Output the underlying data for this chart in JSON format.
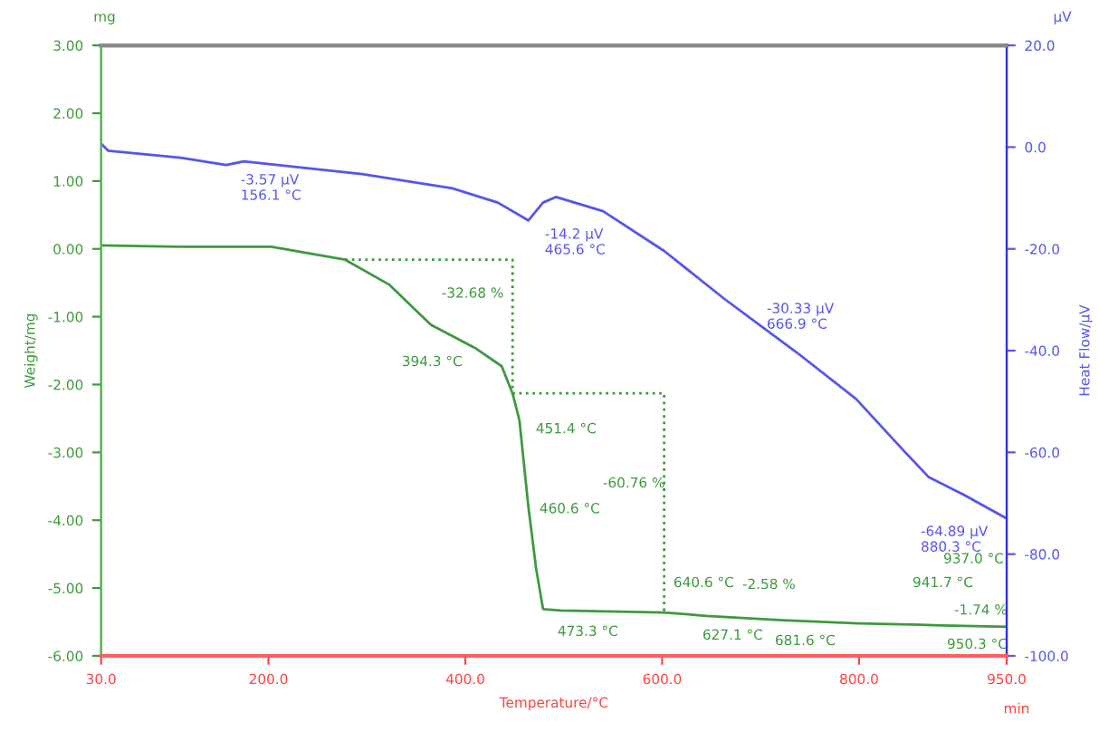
{
  "chart_data": {
    "type": "line",
    "xlabel": "Temperature/°C",
    "ylabel": "Weight/mg",
    "y2label": "Heat Flow/µV",
    "xlim": [
      30,
      950
    ],
    "xticks": [
      {
        "value": 30,
        "label": "30.0"
      },
      {
        "value": 200,
        "label": "200.0"
      },
      {
        "value": 400,
        "label": "400.0"
      },
      {
        "value": 600,
        "label": "600.0"
      },
      {
        "value": 800,
        "label": "800.0"
      },
      {
        "value": 950,
        "label": "950.0"
      }
    ],
    "ylim": [
      -6,
      3
    ],
    "yticks": [
      {
        "value": 3,
        "label": "3.00"
      },
      {
        "value": 2,
        "label": "2.00"
      },
      {
        "value": 1,
        "label": "1.00"
      },
      {
        "value": 0,
        "label": "0.00"
      },
      {
        "value": -1,
        "label": "-1.00"
      },
      {
        "value": -2,
        "label": "-2.00"
      },
      {
        "value": -3,
        "label": "-3.00"
      },
      {
        "value": -4,
        "label": "-4.00"
      },
      {
        "value": -5,
        "label": "-5.00"
      },
      {
        "value": -6,
        "label": "-6.00"
      }
    ],
    "y2lim": [
      -100,
      20
    ],
    "y2ticks": [
      {
        "value": 20,
        "label": "20.0"
      },
      {
        "value": 0,
        "label": "0.0"
      },
      {
        "value": -20,
        "label": "-20.0"
      },
      {
        "value": -40,
        "label": "-40.0"
      },
      {
        "value": -60,
        "label": "-60.0"
      },
      {
        "value": -80,
        "label": "-80.0"
      },
      {
        "value": -100,
        "label": "-100.0"
      }
    ],
    "grid": false,
    "series": [
      {
        "color": "#3c9a3c",
        "x": [
          30,
          111,
          203,
          278,
          323,
          365,
          411,
          437,
          448,
          455,
          464,
          472,
          479,
          497,
          602,
          645,
          718,
          799,
          884,
          950
        ],
        "values": [
          0.05,
          0.03,
          0.03,
          -0.16,
          -0.53,
          -1.12,
          -1.47,
          -1.73,
          -2.13,
          -2.53,
          -3.79,
          -4.72,
          -5.31,
          -5.33,
          -5.36,
          -5.41,
          -5.47,
          -5.52,
          -5.55,
          -5.57
        ]
      },
      {
        "color": "#5555ee",
        "axis": "y2",
        "x": [
          30,
          37,
          111,
          157,
          175,
          295,
          387,
          433,
          464,
          479,
          492,
          540,
          602,
          663,
          737,
          797,
          847,
          871,
          907,
          950
        ],
        "values": [
          0.7,
          -0.7,
          -2.1,
          -3.5,
          -2.8,
          -5.3,
          -8.1,
          -10.9,
          -14.4,
          -10.9,
          -9.8,
          -12.6,
          -20.4,
          -29.8,
          -40.4,
          -49.5,
          -60.0,
          -64.9,
          -68.4,
          -73.0
        ]
      },
      {
        "color": "#3c9a3c",
        "line_style": "dotted",
        "x": [
          278,
          448,
          448
        ],
        "values": [
          -0.16,
          -0.16,
          -2.13
        ]
      },
      {
        "color": "#3c9a3c",
        "line_style": "dotted",
        "x": [
          448,
          602,
          602
        ],
        "values": [
          -2.13,
          -2.13,
          -5.36
        ]
      }
    ],
    "annotations": [
      "mg",
      "µV",
      "min",
      "-3.57 µV\n156.1 °C",
      "-14.2 µV\n465.6 °C",
      "-30.33 µV\n666.9 °C",
      "-64.89 µV\n880.3 °C",
      "-32.68 %",
      "394.3 °C",
      "451.4 °C",
      "460.6 °C",
      "-60.76 %",
      "640.6 °C",
      "-2.58 %",
      "473.3 °C",
      "627.1 °C",
      "681.6 °C",
      "941.7 °C",
      "937.0 °C",
      "-1.74 %",
      "950.3 °C"
    ]
  }
}
